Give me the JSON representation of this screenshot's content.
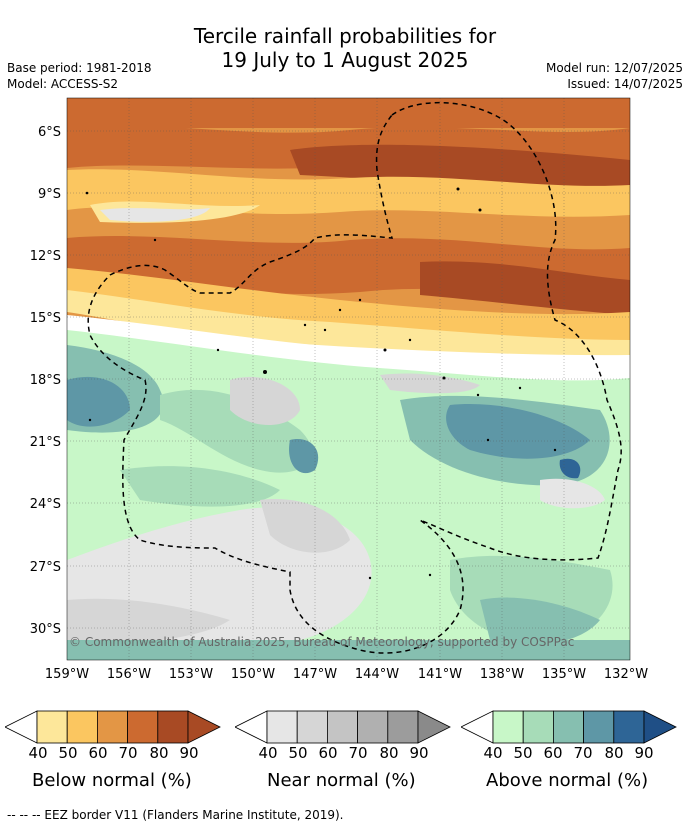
{
  "title": {
    "line1": "Tercile rainfall probabilities for",
    "line2": "19 July to 1 August 2025"
  },
  "meta": {
    "base_period": "Base period: 1981-2018",
    "model": "Model: ACCESS-S2",
    "model_run": "Model run: 12/07/2025",
    "issued": "Issued: 14/07/2025"
  },
  "map": {
    "lat_labels": [
      "6°S",
      "9°S",
      "12°S",
      "15°S",
      "18°S",
      "21°S",
      "24°S",
      "27°S",
      "30°S"
    ],
    "lon_labels": [
      "159°W",
      "156°W",
      "153°W",
      "150°W",
      "147°W",
      "144°W",
      "141°W",
      "138°W",
      "135°W",
      "132°W"
    ],
    "copyright": "© Commonwealth of Australia 2025, Bureau of Meteorology, supported by COSPPac"
  },
  "legend": {
    "below": {
      "label": "Below normal (%)",
      "ticks": [
        "40",
        "50",
        "60",
        "70",
        "80",
        "90"
      ],
      "colors": [
        "#fde79a",
        "#fbc660",
        "#e39645",
        "#cc6a30",
        "#a84a24"
      ]
    },
    "near": {
      "label": "Near normal (%)",
      "ticks": [
        "40",
        "50",
        "60",
        "70",
        "80",
        "90"
      ],
      "colors": [
        "#e6e6e6",
        "#d6d6d6",
        "#c4c4c4",
        "#b0b0b0",
        "#9c9c9c"
      ]
    },
    "above": {
      "label": "Above normal (%)",
      "ticks": [
        "40",
        "50",
        "60",
        "70",
        "80",
        "90"
      ],
      "colors": [
        "#c8f7c8",
        "#a7dcb8",
        "#86bfb0",
        "#5e97a6",
        "#2e6596"
      ]
    }
  },
  "footer": "--  --  -- EEZ border V11 (Flanders Marine Institute, 2019)."
}
